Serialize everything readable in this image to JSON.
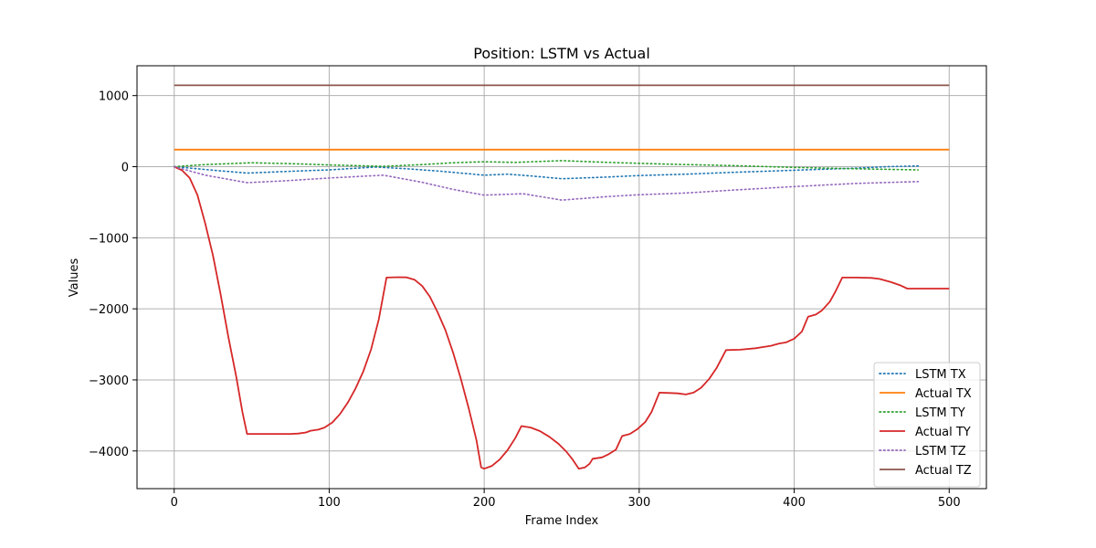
{
  "chart_data": {
    "type": "line",
    "title": "Position: LSTM vs Actual",
    "xlabel": "Frame Index",
    "ylabel": "Values",
    "xlim": [
      -24,
      524
    ],
    "ylim": [
      -4530,
      1420
    ],
    "xticks": [
      0,
      100,
      200,
      300,
      400,
      500
    ],
    "yticks": [
      -4000,
      -3000,
      -2000,
      -1000,
      0,
      1000
    ],
    "grid": true,
    "legend_position": "lower-right",
    "series": [
      {
        "name": "LSTM TX",
        "color": "#1f77b4",
        "style": "dotted",
        "points": [
          [
            0,
            0
          ],
          [
            20,
            -40
          ],
          [
            47,
            -90
          ],
          [
            80,
            -60
          ],
          [
            100,
            -45
          ],
          [
            130,
            -5
          ],
          [
            150,
            -30
          ],
          [
            170,
            -60
          ],
          [
            200,
            -120
          ],
          [
            215,
            -105
          ],
          [
            230,
            -130
          ],
          [
            250,
            -170
          ],
          [
            280,
            -145
          ],
          [
            300,
            -125
          ],
          [
            330,
            -105
          ],
          [
            360,
            -80
          ],
          [
            400,
            -50
          ],
          [
            440,
            -20
          ],
          [
            460,
            0
          ],
          [
            480,
            10
          ]
        ]
      },
      {
        "name": "Actual TX",
        "color": "#ff7f0e",
        "style": "solid",
        "points": [
          [
            0,
            240
          ],
          [
            500,
            240
          ]
        ]
      },
      {
        "name": "LSTM TY",
        "color": "#2ca02c",
        "style": "dotted",
        "points": [
          [
            0,
            0
          ],
          [
            20,
            30
          ],
          [
            50,
            55
          ],
          [
            80,
            40
          ],
          [
            100,
            25
          ],
          [
            135,
            5
          ],
          [
            160,
            30
          ],
          [
            180,
            55
          ],
          [
            200,
            70
          ],
          [
            220,
            60
          ],
          [
            250,
            85
          ],
          [
            280,
            60
          ],
          [
            320,
            35
          ],
          [
            360,
            15
          ],
          [
            400,
            -10
          ],
          [
            440,
            -30
          ],
          [
            480,
            -45
          ]
        ]
      },
      {
        "name": "Actual TY",
        "color": "#d62728",
        "style": "solid",
        "points": [
          [
            0,
            0
          ],
          [
            5,
            -50
          ],
          [
            10,
            -160
          ],
          [
            15,
            -400
          ],
          [
            20,
            -800
          ],
          [
            25,
            -1250
          ],
          [
            30,
            -1800
          ],
          [
            35,
            -2400
          ],
          [
            40,
            -2950
          ],
          [
            44,
            -3450
          ],
          [
            47,
            -3760
          ],
          [
            55,
            -3760
          ],
          [
            65,
            -3760
          ],
          [
            75,
            -3760
          ],
          [
            80,
            -3755
          ],
          [
            85,
            -3740
          ],
          [
            88,
            -3715
          ],
          [
            93,
            -3700
          ],
          [
            97,
            -3670
          ],
          [
            102,
            -3600
          ],
          [
            107,
            -3480
          ],
          [
            112,
            -3320
          ],
          [
            117,
            -3120
          ],
          [
            122,
            -2880
          ],
          [
            127,
            -2570
          ],
          [
            132,
            -2150
          ],
          [
            137,
            -1560
          ],
          [
            145,
            -1555
          ],
          [
            150,
            -1558
          ],
          [
            155,
            -1590
          ],
          [
            160,
            -1680
          ],
          [
            165,
            -1830
          ],
          [
            170,
            -2050
          ],
          [
            175,
            -2300
          ],
          [
            180,
            -2620
          ],
          [
            185,
            -2990
          ],
          [
            190,
            -3400
          ],
          [
            195,
            -3850
          ],
          [
            198,
            -4230
          ],
          [
            200,
            -4250
          ],
          [
            205,
            -4210
          ],
          [
            210,
            -4120
          ],
          [
            215,
            -3990
          ],
          [
            220,
            -3820
          ],
          [
            224,
            -3650
          ],
          [
            230,
            -3670
          ],
          [
            236,
            -3720
          ],
          [
            242,
            -3800
          ],
          [
            248,
            -3900
          ],
          [
            253,
            -4010
          ],
          [
            257,
            -4120
          ],
          [
            261,
            -4250
          ],
          [
            265,
            -4230
          ],
          [
            268,
            -4180
          ],
          [
            270,
            -4110
          ],
          [
            276,
            -4090
          ],
          [
            280,
            -4050
          ],
          [
            285,
            -3980
          ],
          [
            289,
            -3790
          ],
          [
            294,
            -3760
          ],
          [
            299,
            -3690
          ],
          [
            304,
            -3590
          ],
          [
            308,
            -3450
          ],
          [
            313,
            -3180
          ],
          [
            320,
            -3185
          ],
          [
            325,
            -3190
          ],
          [
            330,
            -3205
          ],
          [
            335,
            -3180
          ],
          [
            340,
            -3110
          ],
          [
            345,
            -2990
          ],
          [
            350,
            -2830
          ],
          [
            356,
            -2580
          ],
          [
            365,
            -2575
          ],
          [
            375,
            -2555
          ],
          [
            385,
            -2520
          ],
          [
            390,
            -2490
          ],
          [
            395,
            -2470
          ],
          [
            400,
            -2420
          ],
          [
            405,
            -2320
          ],
          [
            409,
            -2110
          ],
          [
            414,
            -2080
          ],
          [
            418,
            -2020
          ],
          [
            423,
            -1900
          ],
          [
            427,
            -1740
          ],
          [
            431,
            -1560
          ],
          [
            440,
            -1560
          ],
          [
            450,
            -1565
          ],
          [
            455,
            -1580
          ],
          [
            462,
            -1620
          ],
          [
            468,
            -1665
          ],
          [
            473,
            -1715
          ],
          [
            480,
            -1715
          ],
          [
            490,
            -1715
          ],
          [
            500,
            -1715
          ]
        ]
      },
      {
        "name": "LSTM TZ",
        "color": "#9467bd",
        "style": "dotted",
        "points": [
          [
            0,
            0
          ],
          [
            20,
            -120
          ],
          [
            47,
            -225
          ],
          [
            70,
            -200
          ],
          [
            100,
            -160
          ],
          [
            135,
            -120
          ],
          [
            160,
            -220
          ],
          [
            180,
            -320
          ],
          [
            200,
            -400
          ],
          [
            225,
            -380
          ],
          [
            250,
            -470
          ],
          [
            280,
            -420
          ],
          [
            300,
            -395
          ],
          [
            330,
            -370
          ],
          [
            360,
            -330
          ],
          [
            400,
            -280
          ],
          [
            440,
            -235
          ],
          [
            480,
            -210
          ]
        ]
      },
      {
        "name": "Actual TZ",
        "color": "#8c564b",
        "style": "solid",
        "points": [
          [
            0,
            1145
          ],
          [
            500,
            1145
          ]
        ]
      }
    ]
  }
}
